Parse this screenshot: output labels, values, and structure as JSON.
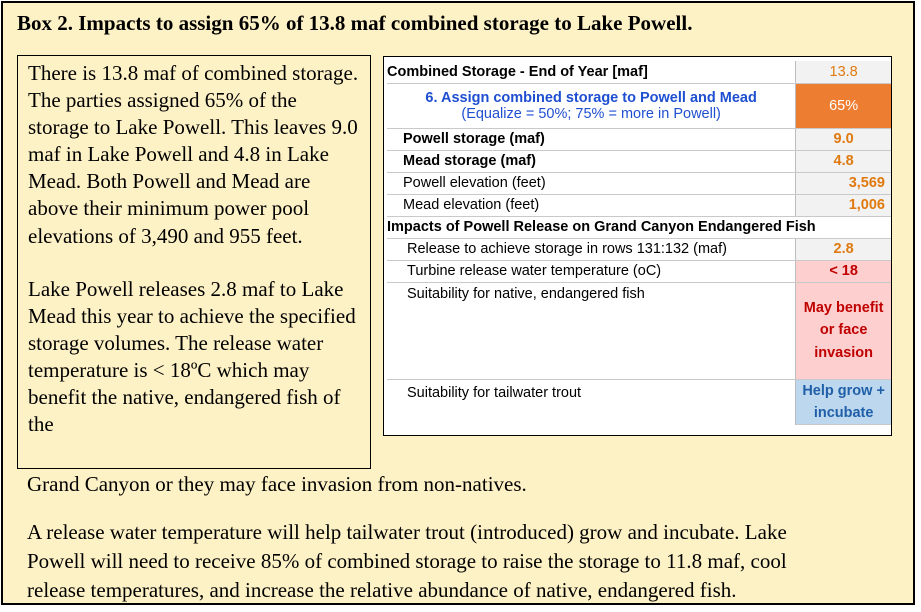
{
  "title": "Box 2. Impacts to assign 65% of 13.8 maf combined storage to Lake Powell.",
  "left_text": {
    "para1": "There is 13.8 maf of combined storage. The parties assigned 65% of the storage to Lake Powell. This leaves 9.0 maf in Lake Powell and 4.8 in Lake Mead. Both Powell and Mead are above their minimum power pool elevations of 3,490 and 955 feet.",
    "para2": "Lake Powell releases 2.8 maf to Lake Mead this year to achieve the specified storage volumes. The release water temperature is < 18ºC which may benefit the native, endangered fish of the",
    "continued": "Grand Canyon or they may face invasion from non-natives."
  },
  "bottom_text": {
    "line1": "A release water temperature will help tailwater trout (introduced) grow and incubate. Lake",
    "line2": "Powell will need to receive 85% of combined storage to raise the storage to 11.8 maf, cool",
    "line3": "release temperatures, and increase the relative abundance of  native, endangered fish."
  },
  "table": {
    "row1": {
      "label": "Combined Storage - End of Year [maf]",
      "value": "13.8"
    },
    "row2": {
      "label": "6. Assign combined storage to Powell and Mead",
      "sublabel": "(Equalize = 50%; 75% = more in Powell)",
      "value": "65%"
    },
    "row3": {
      "label": "Powell storage (maf)",
      "value": "9.0"
    },
    "row4": {
      "label": "Mead storage (maf)",
      "value": "4.8"
    },
    "row5": {
      "label": "Powell elevation (feet)",
      "value": "3,569"
    },
    "row6": {
      "label": "Mead elevation (feet)",
      "value": "1,006"
    },
    "section": "Impacts of Powell Release on Grand Canyon Endangered Fish",
    "row7": {
      "label": "Release to achieve storage in rows 131:132 (maf)",
      "value": "2.8"
    },
    "row8": {
      "label": "Turbine release water temperature (oC)",
      "value": "< 18"
    },
    "row9": {
      "label": "Suitability for native, endangered fish",
      "value": "May benefit or face invasion"
    },
    "row10": {
      "label": "Suitability for tailwater trout",
      "value": "Help grow + incubate"
    }
  },
  "colors": {
    "background": "#fdf1c6",
    "orange_cell": "#ed7d31",
    "value_text": "#e07a10",
    "pink_cell": "#fdcfcf",
    "blue_cell": "#bdd7ee"
  }
}
